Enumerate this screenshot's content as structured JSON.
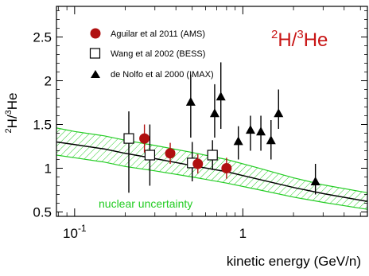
{
  "chart_data": {
    "type": "scatter",
    "title": "",
    "xlabel": "kinetic energy (GeV/n)",
    "ylabel_parts": [
      "2",
      "H/",
      "3",
      "He"
    ],
    "annotation_parts": [
      "2",
      "H/",
      "3",
      "He"
    ],
    "xscale": "log",
    "xlim": [
      0.078,
      5.5
    ],
    "ylim": [
      0.45,
      2.85
    ],
    "x_ticks": [
      {
        "value": 0.1,
        "label": "10",
        "exp": "-1"
      },
      {
        "value": 1,
        "label": "1",
        "exp": ""
      }
    ],
    "y_ticks": [
      0.5,
      1,
      1.5,
      2,
      2.5
    ],
    "y_tick_labels": [
      "0.5",
      "1",
      "1.5",
      "2",
      "2.5"
    ],
    "grid": false,
    "legend_position": "top-left",
    "colors": {
      "ams": "#b01010",
      "band": "#22cc22",
      "annotation": "#c81414",
      "band_label": "#22cc22"
    },
    "band_label": "nuclear uncertainty",
    "series": [
      {
        "name": "Aguilar et al 2011 (AMS)",
        "marker": "filled-circle",
        "points": [
          {
            "x": 0.26,
            "y": 1.34,
            "ylo": 1.18,
            "yhi": 1.5
          },
          {
            "x": 0.37,
            "y": 1.17,
            "ylo": 1.05,
            "yhi": 1.29
          },
          {
            "x": 0.54,
            "y": 1.05,
            "ylo": 0.94,
            "yhi": 1.16
          },
          {
            "x": 0.8,
            "y": 1.0,
            "ylo": 0.88,
            "yhi": 1.12
          }
        ]
      },
      {
        "name": "Wang et al 2002 (BESS)",
        "marker": "open-square",
        "points": [
          {
            "x": 0.21,
            "y": 1.34,
            "ylo": 0.72,
            "yhi": 1.65
          },
          {
            "x": 0.28,
            "y": 1.15,
            "ylo": 0.8,
            "yhi": 1.5
          },
          {
            "x": 0.5,
            "y": 1.06,
            "ylo": 0.85,
            "yhi": 1.3
          },
          {
            "x": 0.66,
            "y": 1.15,
            "ylo": 0.98,
            "yhi": 1.32
          }
        ]
      },
      {
        "name": "de Nolfo et al 2000 (IMAX)",
        "marker": "filled-triangle",
        "points": [
          {
            "x": 0.49,
            "y": 1.76,
            "ylo": 1.35,
            "yhi": 2.07
          },
          {
            "x": 0.74,
            "y": 1.82,
            "ylo": 1.45,
            "yhi": 2.21
          },
          {
            "x": 0.68,
            "y": 1.63,
            "ylo": 1.35,
            "yhi": 1.96
          },
          {
            "x": 0.94,
            "y": 1.31,
            "ylo": 1.1,
            "yhi": 1.48
          },
          {
            "x": 1.11,
            "y": 1.44,
            "ylo": 1.2,
            "yhi": 1.6
          },
          {
            "x": 1.28,
            "y": 1.42,
            "ylo": 1.2,
            "yhi": 1.6
          },
          {
            "x": 1.47,
            "y": 1.32,
            "ylo": 1.1,
            "yhi": 1.55
          },
          {
            "x": 1.63,
            "y": 1.63,
            "ylo": 1.45,
            "yhi": 1.9
          },
          {
            "x": 2.7,
            "y": 0.85,
            "ylo": 0.7,
            "yhi": 1.05
          }
        ]
      }
    ],
    "band": {
      "x": [
        0.078,
        0.1,
        0.15,
        0.2,
        0.3,
        0.5,
        0.8,
        1.2,
        2.0,
        3.0,
        5.5
      ],
      "center": [
        1.3,
        1.27,
        1.22,
        1.17,
        1.11,
        1.03,
        0.96,
        0.88,
        0.78,
        0.71,
        0.62
      ],
      "lower": [
        1.15,
        1.12,
        1.07,
        1.02,
        0.97,
        0.9,
        0.83,
        0.76,
        0.67,
        0.61,
        0.53
      ],
      "upper": [
        1.46,
        1.42,
        1.37,
        1.32,
        1.26,
        1.18,
        1.1,
        1.01,
        0.89,
        0.81,
        0.72
      ]
    }
  }
}
